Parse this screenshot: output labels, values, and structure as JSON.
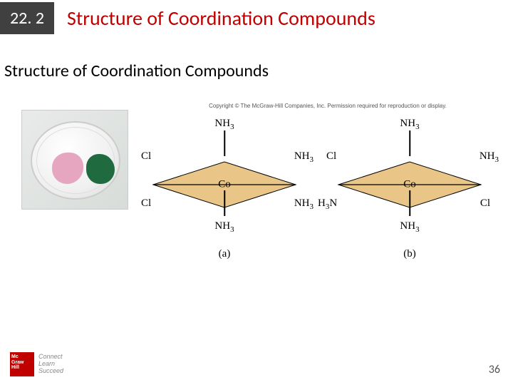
{
  "header": {
    "section_number": "22. 2",
    "title": "Structure of Coordination Compounds"
  },
  "subtitle": "Structure of Coordination Compounds",
  "copyright": "Copyright © The McGraw-Hill Companies, Inc. Permission required for reproduction or display.",
  "photo": {
    "pink_color": "#e6a6c0",
    "green_color": "#1f6b3f"
  },
  "diagram": {
    "center": "Co",
    "diamond_fill": "#e9c688",
    "diamond_stroke": "#000000",
    "diamond_w": 200,
    "diamond_h": 64,
    "axial_top": "NH",
    "axial_bottom": "NH",
    "eq_right": "NH",
    "a": {
      "top_left": "Cl",
      "bottom_left": "Cl",
      "bottom_right_plain": true,
      "caption": "(a)"
    },
    "b": {
      "top_left": "Cl",
      "bottom_left": "H₃N",
      "bottom_right": "Cl",
      "caption": "(b)"
    }
  },
  "logo": {
    "brand_lines": "Mc\nGraw\nHill",
    "tag1": "Connect",
    "tag2": "Learn",
    "tag3": "Succeed"
  },
  "page_number": "36",
  "colors": {
    "accent": "#c00000",
    "badge_bg": "#404040"
  }
}
